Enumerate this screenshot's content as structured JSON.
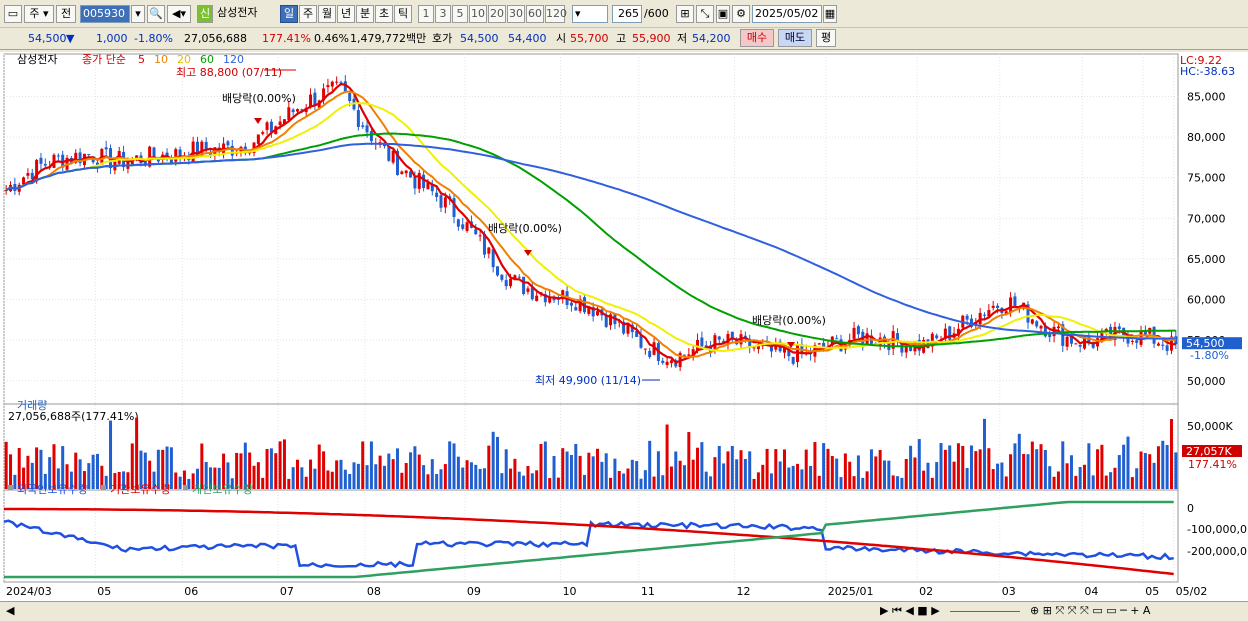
{
  "toolbar": {
    "market_btn": "주",
    "prev_btn": "전",
    "code": "005930",
    "name_flag": "신",
    "name": "삼성전자",
    "periods": [
      "일",
      "주",
      "월",
      "년",
      "분",
      "초",
      "틱"
    ],
    "selected_period": "일",
    "intervals": [
      "1",
      "3",
      "5",
      "10",
      "20",
      "30",
      "60",
      "120"
    ],
    "count": "265",
    "count_max": "/600",
    "date": "2025/05/02"
  },
  "quote": {
    "price": "54,500",
    "change": "1,000",
    "change_pct": "-1.80%",
    "volume": "27,056,688",
    "volume_ratio": "177.41%",
    "turnover_pct": "0.46%",
    "amount": "1,479,772백만",
    "bid_label": "호가",
    "ask": "54,500",
    "bid": "54,400",
    "open_label": "시",
    "open": "55,700",
    "high_label": "고",
    "high": "55,900",
    "low_label": "저",
    "low": "54,200",
    "buy_btn": "매수",
    "sell_btn": "매도",
    "eval_btn": "평"
  },
  "colors": {
    "up": "#e00000",
    "down": "#1f5fd0",
    "ma5": "#e00000",
    "ma10": "#f08000",
    "ma20": "#f0f000",
    "ma60": "#00a000",
    "ma120": "#3060e0",
    "foreign": "#2050e0",
    "institution": "#e00000",
    "individual": "#30a060"
  },
  "chart_data": {
    "type": "candlestick",
    "price_panel": {
      "title": "삼성전자",
      "legend_prefix": "종가 단순",
      "ma_periods": [
        "5",
        "10",
        "20",
        "60",
        "120"
      ],
      "ylim": [
        48000,
        89000
      ],
      "yticks": [
        "85,000",
        "80,000",
        "75,000",
        "70,000",
        "65,000",
        "60,000",
        "55,000",
        "50,000"
      ],
      "corner_labels": [
        "LC:9.22",
        "HC:-38.63"
      ],
      "last_price_label": "54,500",
      "last_change_label": "-1.80%",
      "annotations": {
        "high": "최고 88,800 (07/11)",
        "low": "최저 49,900 (11/14)",
        "dividends": [
          "배당락(0.00%)",
          "배당락(0.00%)",
          "배당락(0.00%)"
        ]
      },
      "x_dates": [
        "2024-03",
        "2024-04",
        "2024-05",
        "2024-06",
        "2024-07",
        "2024-08",
        "2024-09",
        "2024-10",
        "2024-11",
        "2024-12",
        "2025-01",
        "2025-02",
        "2025-03",
        "2025-04",
        "2025-05"
      ],
      "close_monthly": [
        73500,
        78500,
        76800,
        80500,
        85500,
        73500,
        63500,
        58200,
        53500,
        54000,
        54200,
        55300,
        59000,
        55000,
        54500
      ]
    },
    "volume_panel": {
      "title": "거래량",
      "current": "27,056,688주(177.41%)",
      "ylabel_tick": "50,000K",
      "last_label": "27,057K",
      "last_ratio": "177.41%"
    },
    "holding_panel": {
      "series": [
        "외국인보유수량",
        "기관보유수량",
        "개인보유수량"
      ],
      "yticks": [
        "0",
        "-100,000,0",
        "-200,000,0"
      ]
    },
    "x_tick_labels": [
      "2024/03",
      "05",
      "06",
      "07",
      "08",
      "09",
      "10",
      "11",
      "12",
      "2025/01",
      "02",
      "03",
      "04",
      "05",
      "05/02"
    ]
  }
}
